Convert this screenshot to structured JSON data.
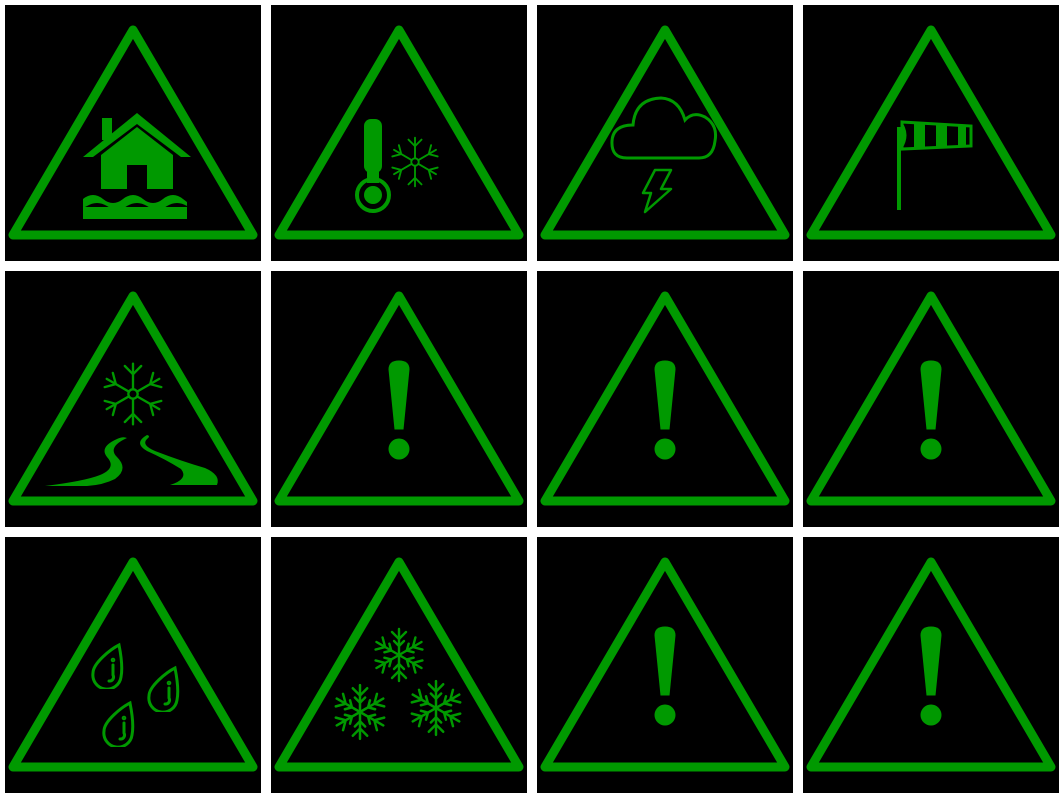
{
  "colors": {
    "accent": "#009900",
    "tile_background": "#000000",
    "page_background": "#ffffff"
  },
  "tiles": [
    {
      "icon": "flood-icon"
    },
    {
      "icon": "cold-temperature-icon"
    },
    {
      "icon": "thunderstorm-icon"
    },
    {
      "icon": "wind-icon"
    },
    {
      "icon": "snow-ice-road-icon"
    },
    {
      "icon": "exclamation-icon"
    },
    {
      "icon": "exclamation-icon"
    },
    {
      "icon": "exclamation-icon"
    },
    {
      "icon": "rain-icon"
    },
    {
      "icon": "snow-icon"
    },
    {
      "icon": "exclamation-icon"
    },
    {
      "icon": "exclamation-icon"
    }
  ]
}
